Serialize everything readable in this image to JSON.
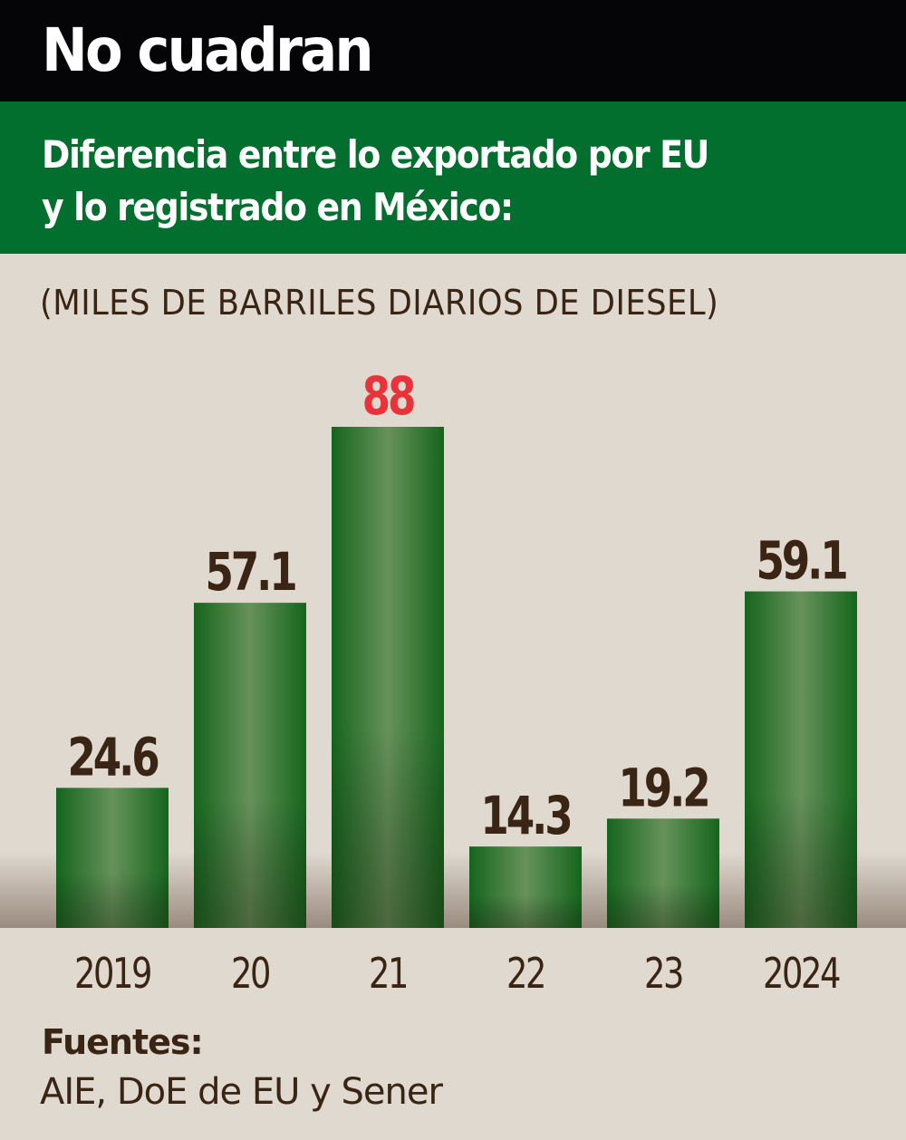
{
  "header": {
    "title": "No cuadran",
    "subtitle_line1": "Diferencia entre lo exportado por EU",
    "subtitle_line2": "y lo registrado en México:"
  },
  "footer": {
    "sources_label": "Fuentes:",
    "sources_text": "AIE, DoE de EU y Sener"
  },
  "colors": {
    "header_bg": "#050407",
    "band_bg": "#026f2e",
    "bar_green": "#1a6b22",
    "highlight_label": "#e8333a",
    "label_text": "#3a2413"
  },
  "chart_data": {
    "type": "bar",
    "title": "No cuadran",
    "subtitle": "Diferencia entre lo exportado por EU y lo registrado en México:",
    "ylabel": "(MILES DE BARRILES DIARIOS DE DIESEL)",
    "xlabel": "",
    "categories": [
      "2019",
      "20",
      "21",
      "22",
      "23",
      "2024"
    ],
    "values": [
      24.6,
      57.1,
      88,
      14.3,
      19.2,
      59.1
    ],
    "value_labels": [
      "24.6",
      "57.1",
      "88",
      "14.3",
      "19.2",
      "59.1"
    ],
    "highlight_index": 2,
    "ylim": [
      0,
      88
    ],
    "grid": false,
    "legend": "none"
  }
}
